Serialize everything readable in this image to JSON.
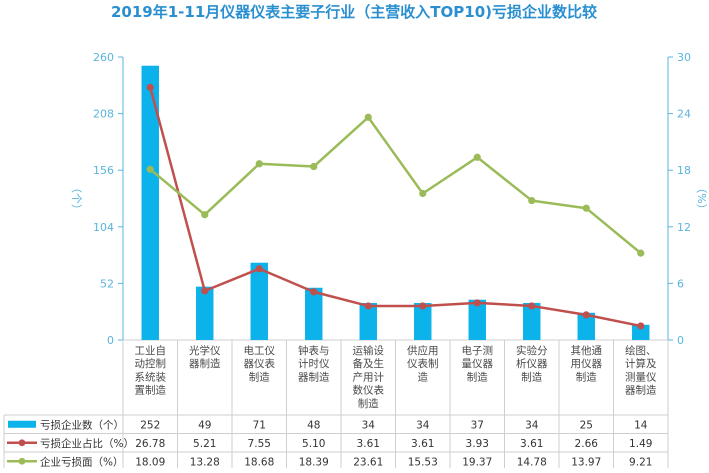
{
  "chart_data": {
    "type": "bar",
    "title": "2019年1-11月仪器仪表主要子行业（主营收入TOP10)亏损企业数比较",
    "y_left_label": "（个）",
    "y_right_label": "（%）",
    "y_left_ticks": [
      "0",
      "52",
      "104",
      "156",
      "208",
      "260"
    ],
    "y_right_ticks": [
      "0",
      "6",
      "12",
      "18",
      "24",
      "30"
    ],
    "y_left_range": [
      0,
      260
    ],
    "y_right_range": [
      0,
      30
    ],
    "categories": [
      [
        "工业自",
        "动控制",
        "系统装",
        "置制造"
      ],
      [
        "光学仪",
        "器制造"
      ],
      [
        "电工仪",
        "器仪表",
        "制造"
      ],
      [
        "钟表与",
        "计时仪",
        "器制造"
      ],
      [
        "运输设",
        "备及生",
        "产用计",
        "数仪表",
        "制造"
      ],
      [
        "供应用",
        "仪表制",
        "造"
      ],
      [
        "电子测",
        "量仪器",
        "制造"
      ],
      [
        "实验分",
        "析仪器",
        "制造"
      ],
      [
        "其他通",
        "用仪器",
        "制造"
      ],
      [
        "绘图、",
        "计算及",
        "测量仪",
        "器制造"
      ]
    ],
    "series": [
      {
        "name": "亏损企业数（个）",
        "kind": "bar",
        "axis": "left",
        "color": "#0cb2ea",
        "values": [
          252,
          49,
          71,
          48,
          34,
          34,
          37,
          34,
          25,
          14
        ],
        "labels": [
          "252",
          "49",
          "71",
          "48",
          "34",
          "34",
          "37",
          "34",
          "25",
          "14"
        ]
      },
      {
        "name": "亏损企业占比（%）",
        "kind": "line",
        "axis": "right",
        "color": "#c0504d",
        "values": [
          26.78,
          5.21,
          7.55,
          5.1,
          3.61,
          3.61,
          3.93,
          3.61,
          2.66,
          1.49
        ],
        "labels": [
          "26.78",
          "5.21",
          "7.55",
          "5.10",
          "3.61",
          "3.61",
          "3.93",
          "3.61",
          "2.66",
          "1.49"
        ]
      },
      {
        "name": "企业亏损面（%）",
        "kind": "line",
        "axis": "right",
        "color": "#9bbb59",
        "values": [
          18.09,
          13.28,
          18.68,
          18.39,
          23.61,
          15.53,
          19.37,
          14.78,
          13.97,
          9.21
        ],
        "labels": [
          "18.09",
          "13.28",
          "18.68",
          "18.39",
          "23.61",
          "15.53",
          "19.37",
          "14.78",
          "13.97",
          "9.21"
        ]
      }
    ],
    "grid": false,
    "legend": "data-table"
  }
}
